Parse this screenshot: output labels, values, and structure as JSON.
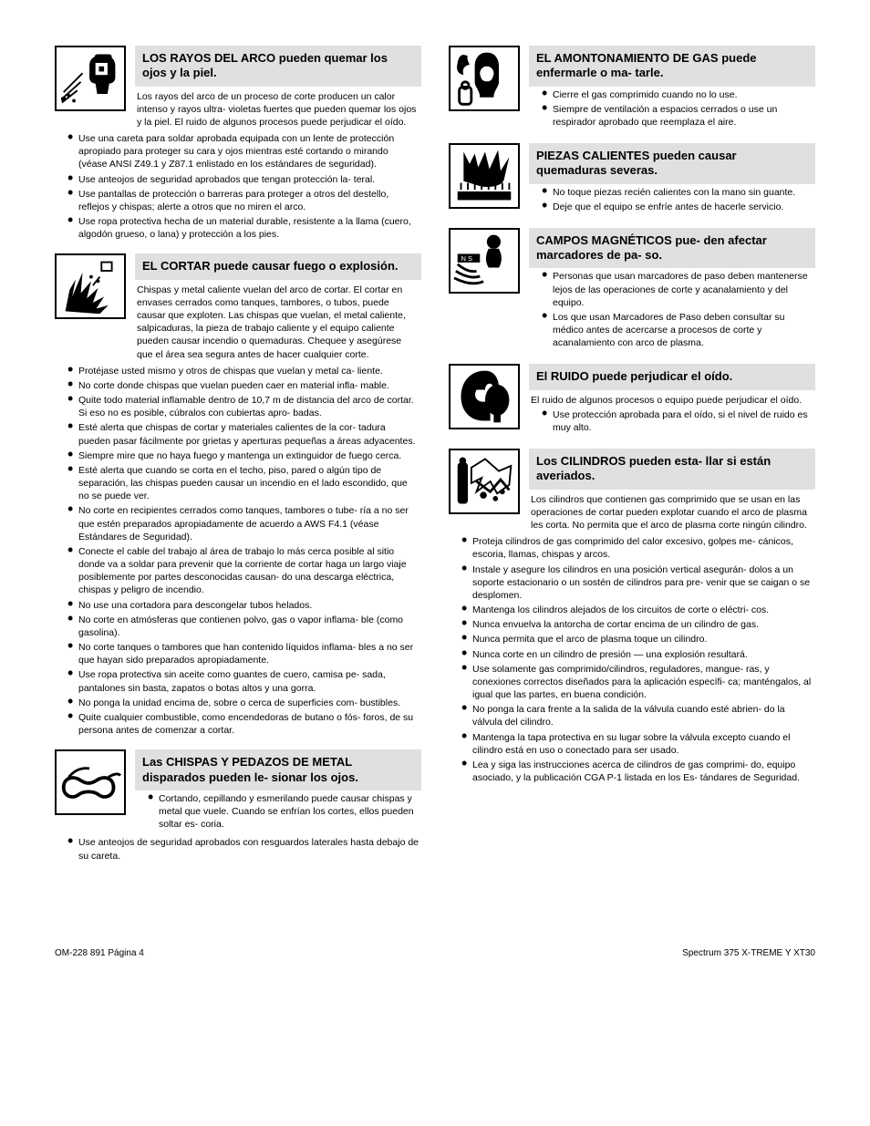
{
  "footer": {
    "left": "OM-228 891 Página 4",
    "right": "Spectrum 375 X-TREME Y XT30"
  },
  "left_column": [
    {
      "id": "arc_rays",
      "title": "LOS RAYOS DEL ARCO pueden\nquemar los ojos y la piel.",
      "subtext": "Los rayos del arco de un proceso de corte producen un calor intenso y rayos ultra-\nvioletas fuertes que pueden quemar los ojos y la piel. El ruido de algunos procesos puede perjudicar el oído.",
      "bullets": [
        "Use una careta para soldar aprobada equipada con un lente de\nprotección apropiado para proteger su cara y ojos mientras esté\ncortando o mirando (véase ANSI Z49.1 y Z87.1 enlistado en los\nestándares de seguridad).",
        "Use anteojos de seguridad aprobados que tengan protección la-\nteral.",
        "Use pantallas de protección o barreras para proteger a otros del\ndestello, reflejos y chispas; alerte a otros que no miren el arco.",
        "Use ropa protectiva hecha de un material durable, resistente a la\nllama (cuero, algodón grueso, o lana) y protección a los pies."
      ],
      "icon": "arc_rays"
    },
    {
      "id": "cutting_fire",
      "title": "EL CORTAR puede causar\nfuego o explosión.",
      "subtext": "Chispas y metal caliente vuelan del arco de cortar. El cortar en envases cerrados como tanques, tambores, o tubos, puede causar que exploten. Las chispas que vuelan, el metal caliente, salpicaduras, la pieza de trabajo caliente y el equipo caliente pueden causar incendio o quemaduras. Chequee y asegúrese que el área sea segura antes de hacer cualquier corte.",
      "bullets": [
        "Protéjase usted mismo y otros de chispas que vuelan y metal ca-\nliente.",
        "No corte donde chispas que vuelan pueden caer en material infla-\nmable.",
        "Quite todo material inflamable dentro de 10,7 m de distancia del\narco de cortar. Si eso no es posible, cúbralos con cubiertas apro-\nbadas.",
        "Esté alerta que chispas de cortar y materiales calientes de la cor-\ntadura pueden pasar fácilmente por grietas y aperturas pequeñas\na áreas adyacentes.",
        "Siempre mire que no haya fuego y mantenga un extinguidor de\nfuego cerca.",
        "Esté alerta que cuando se corta en el techo, piso, pared o algún\ntipo de separación, las chispas pueden causar un incendio en el\nlado escondido, que no se puede ver.",
        "No corte en recipientes cerrados como tanques, tambores o tube-\nría a no ser que estén preparados apropiadamente de acuerdo a\nAWS F4.1 (véase Estándares de Seguridad).",
        "Conecte el cable del trabajo al área de trabajo lo más cerca posible\nal sitio donde va a soldar para prevenir que la corriente de cortar\nhaga un largo viaje posiblemente por partes desconocidas causan-\ndo una descarga eléctrica, chispas y peligro de incendio.",
        "No use una cortadora para descongelar tubos helados.",
        "No corte en atmósferas que contienen polvo, gas o vapor inflama-\nble (como gasolina).",
        "No corte tanques o tambores que han contenido líquidos inflama-\nbles a no ser que hayan sido preparados apropiadamente.",
        "Use ropa protectiva sin aceite como guantes de cuero, camisa pe-\nsada, pantalones sin basta, zapatos o botas altos y una gorra.",
        "No ponga la unidad encima de, sobre o cerca de superficies com-\nbustibles.",
        "Quite cualquier combustible, como encendedoras de butano o fós-\nforos, de su persona antes de comenzar a cortar."
      ],
      "icon": "explosion"
    },
    {
      "id": "sparks_eyes",
      "title": "Las CHISPAS Y PEDAZOS DE\nMETAL disparados pueden le-\nsionar los ojos.",
      "subtext": "",
      "inline_bullets": [
        "Cortando, cepillando y esmerilando puede\ncausar chispas y metal que vuele. Cuando\nse enfrían los cortes, ellos pueden soltar es-\ncoria."
      ],
      "bullets": [
        "Use anteojos de seguridad aprobados con resguardos laterales\nhasta debajo de su careta."
      ],
      "icon": "goggles"
    }
  ],
  "right_column": [
    {
      "id": "gas_buildup",
      "title": "EL AMONTONAMIENTO DE\nGAS puede enfermarle o ma-\ntarle.",
      "subtext": "",
      "inline_bullets": [
        "Cierre el gas comprimido cuando no lo use.",
        "Siempre de ventilación a espacios cerrados o use un respirador\naprobado que reemplaza el aire."
      ],
      "icon": "gas"
    },
    {
      "id": "hot_parts",
      "title": "PIEZAS CALIENTES pueden\ncausar quemaduras severas.",
      "subtext": "",
      "inline_bullets": [
        "No toque piezas recién calientes con la mano sin\nguante.",
        "Deje que el equipo se enfríe antes de hacerle\nservicio."
      ],
      "icon": "hot_hand"
    },
    {
      "id": "magnetic",
      "title": "CAMPOS MAGNÉTICOS pue-\nden afectar marcadores de pa-\nso.",
      "subtext": "",
      "inline_bullets": [
        "Personas que usan marcadores de paso\ndeben mantenerse lejos de las operaciones\nde corte y acanalamiento y del equipo.",
        "Los que usan Marcadores de Paso deben\nconsultar su médico antes de acercarse a procesos de corte y\nacanalamiento con arco de plasma."
      ],
      "icon": "magnetic"
    },
    {
      "id": "noise",
      "title": "El RUIDO puede perjudicar el\noído.",
      "subtext": "El ruido de algunos procesos o equipo puede perjudicar el oído.",
      "inline_bullets": [
        "Use protección aprobada para el oído, si el nivel de ruido es muy\nalto."
      ],
      "icon": "ear"
    },
    {
      "id": "cylinders",
      "title": "Los CILINDROS pueden esta-\nllar si están averiados.",
      "subtext": "Los cilindros que contienen gas comprimido\nque se usan en las operaciones de cortar pueden explotar cuando el arco de plasma\nles corta. No permita que el arco de plasma corte ningún cilindro.",
      "bullets": [
        "Proteja cilindros de gas comprimido del calor excesivo, golpes me-\ncánicos, escoria, llamas, chispas y arcos.",
        "Instale y asegure los cilindros en una posición vertical asegurán-\ndolos a un soporte estacionario o un sostén de cilindros para pre-\nvenir que se caigan o se desplomen.",
        "Mantenga los cilindros alejados de los circuitos de corte o eléctri-\ncos.",
        "Nunca envuelva la antorcha de cortar encima de un cilindro de gas.",
        "Nunca permita que el arco de plasma toque un cilindro.",
        "Nunca corte en un cilindro de presión — una explosión resultará.",
        "Use solamente gas comprimido/cilindros, reguladores, mangue-\nras, y conexiones correctos diseñados para la aplicación específi-\nca; manténgalos, al igual que las partes, en buena condición.",
        "No ponga la cara frente a la salida de la válvula cuando esté abrien-\ndo la válvula del cilindro.",
        "Mantenga la tapa protectiva en su lugar sobre la válvula excepto\ncuando el cilindro está en uso o conectado para ser usado.",
        "Lea y siga las instrucciones acerca de cilindros de gas comprimi-\ndo, equipo asociado, y la publicación CGA P-1 listada en los Es-\ntándares de Seguridad."
      ],
      "icon": "cylinder"
    }
  ]
}
